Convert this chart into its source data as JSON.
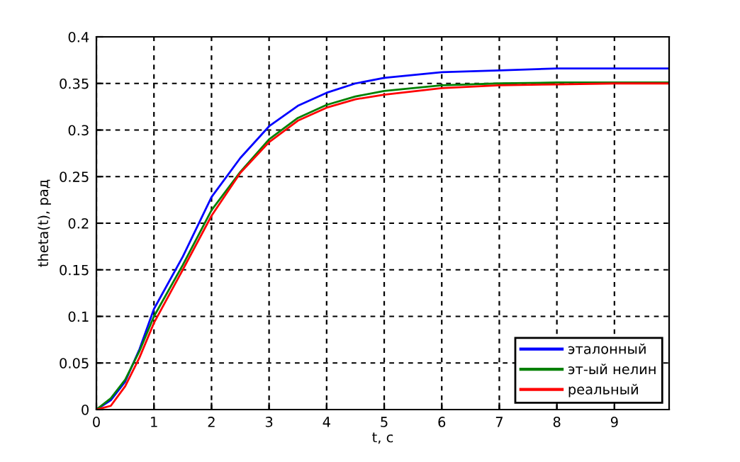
{
  "chart_data": {
    "type": "line",
    "xlabel": "t, c",
    "ylabel": "theta(t), рад",
    "x": [
      0,
      0.25,
      0.5,
      0.75,
      1,
      1.5,
      2,
      2.5,
      3,
      3.5,
      4,
      4.5,
      5,
      6,
      7,
      8,
      9,
      9.95
    ],
    "series": [
      {
        "name": "эталонный",
        "color": "#0000ff",
        "values": [
          0,
          0.01,
          0.03,
          0.065,
          0.108,
          0.164,
          0.228,
          0.27,
          0.304,
          0.326,
          0.34,
          0.35,
          0.356,
          0.362,
          0.364,
          0.366,
          0.366,
          0.366
        ]
      },
      {
        "name": "эт-ый нелин",
        "color": "#008000",
        "values": [
          0,
          0.012,
          0.032,
          0.063,
          0.1,
          0.155,
          0.214,
          0.255,
          0.29,
          0.313,
          0.327,
          0.336,
          0.342,
          0.348,
          0.35,
          0.351,
          0.351,
          0.351
        ]
      },
      {
        "name": "реальный",
        "color": "#ff0000",
        "values": [
          0,
          0.004,
          0.025,
          0.056,
          0.093,
          0.15,
          0.208,
          0.254,
          0.287,
          0.31,
          0.324,
          0.333,
          0.338,
          0.345,
          0.348,
          0.349,
          0.35,
          0.35
        ]
      }
    ],
    "xlim": [
      0,
      9.95
    ],
    "xticks": [
      0,
      1,
      2,
      3,
      4,
      5,
      6,
      7,
      8,
      9
    ],
    "ylim": [
      0,
      0.4
    ],
    "yticks": [
      0,
      0.05,
      0.1,
      0.15,
      0.2,
      0.25,
      0.3,
      0.35,
      0.4
    ],
    "grid": true,
    "legend": "bottom right",
    "line_style": "solid"
  }
}
